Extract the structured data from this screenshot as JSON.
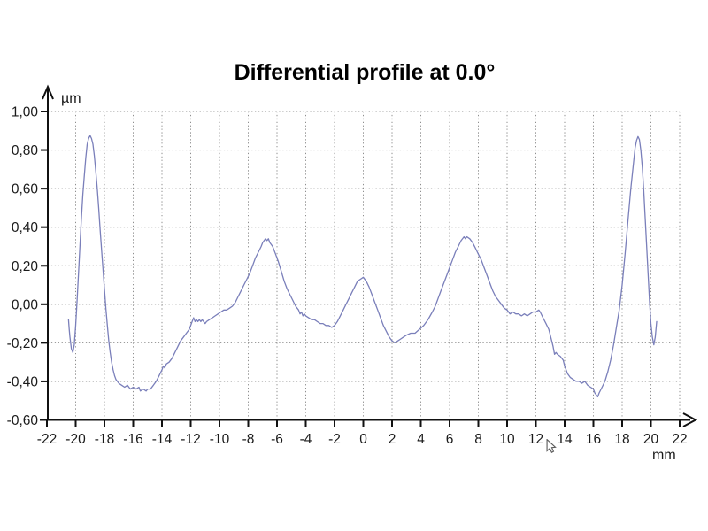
{
  "window": {
    "background": "#ffffff"
  },
  "chart_data": {
    "type": "line",
    "title": "Differential profile at 0.0°",
    "grid": true,
    "legend": "none",
    "x_axis": {
      "unit_label": "mm",
      "min": -22,
      "max": 22,
      "tick_step": 2,
      "tick_labels": [
        "-22",
        "-20",
        "-18",
        "-16",
        "-14",
        "-12",
        "-10",
        "-8",
        "-6",
        "-4",
        "-2",
        "0",
        "2",
        "4",
        "6",
        "8",
        "10",
        "12",
        "14",
        "16",
        "18",
        "20",
        "22"
      ]
    },
    "y_axis": {
      "unit_label": "µm",
      "min": -0.6,
      "max": 1.0,
      "tick_step": 0.2,
      "tick_labels": [
        "1,00",
        "0,80",
        "0,60",
        "0,40",
        "0,20",
        "0,00",
        "-0,20",
        "-0,40",
        "-0,60"
      ]
    },
    "colors": {
      "line": "#7a7fba",
      "grid": "#8f8f8f",
      "axis": "#111111",
      "text": "#1a1a1a"
    },
    "series": [
      {
        "name": "differential-profile",
        "points": [
          [
            -20.5,
            -0.08
          ],
          [
            -20.45,
            -0.13
          ],
          [
            -20.4,
            -0.17
          ],
          [
            -20.3,
            -0.23
          ],
          [
            -20.2,
            -0.25
          ],
          [
            -20.1,
            -0.21
          ],
          [
            -20.0,
            -0.11
          ],
          [
            -19.9,
            0.02
          ],
          [
            -19.8,
            0.16
          ],
          [
            -19.7,
            0.31
          ],
          [
            -19.6,
            0.45
          ],
          [
            -19.5,
            0.57
          ],
          [
            -19.4,
            0.67
          ],
          [
            -19.3,
            0.76
          ],
          [
            -19.2,
            0.83
          ],
          [
            -19.1,
            0.86
          ],
          [
            -19.0,
            0.875
          ],
          [
            -18.9,
            0.86
          ],
          [
            -18.8,
            0.83
          ],
          [
            -18.7,
            0.77
          ],
          [
            -18.6,
            0.69
          ],
          [
            -18.5,
            0.6
          ],
          [
            -18.4,
            0.5
          ],
          [
            -18.3,
            0.39
          ],
          [
            -18.2,
            0.28
          ],
          [
            -18.1,
            0.18
          ],
          [
            -18.0,
            0.08
          ],
          [
            -17.9,
            -0.02
          ],
          [
            -17.8,
            -0.11
          ],
          [
            -17.7,
            -0.19
          ],
          [
            -17.6,
            -0.25
          ],
          [
            -17.5,
            -0.3
          ],
          [
            -17.4,
            -0.34
          ],
          [
            -17.3,
            -0.37
          ],
          [
            -17.2,
            -0.39
          ],
          [
            -17.1,
            -0.4
          ],
          [
            -17.0,
            -0.41
          ],
          [
            -16.8,
            -0.42
          ],
          [
            -16.6,
            -0.43
          ],
          [
            -16.4,
            -0.42
          ],
          [
            -16.2,
            -0.44
          ],
          [
            -16.0,
            -0.43
          ],
          [
            -15.8,
            -0.44
          ],
          [
            -15.6,
            -0.43
          ],
          [
            -15.5,
            -0.45
          ],
          [
            -15.3,
            -0.44
          ],
          [
            -15.1,
            -0.45
          ],
          [
            -15.0,
            -0.44
          ],
          [
            -14.8,
            -0.44
          ],
          [
            -14.6,
            -0.42
          ],
          [
            -14.4,
            -0.4
          ],
          [
            -14.2,
            -0.37
          ],
          [
            -14.0,
            -0.34
          ],
          [
            -13.9,
            -0.32
          ],
          [
            -13.8,
            -0.33
          ],
          [
            -13.7,
            -0.31
          ],
          [
            -13.5,
            -0.3
          ],
          [
            -13.3,
            -0.28
          ],
          [
            -13.1,
            -0.25
          ],
          [
            -12.9,
            -0.22
          ],
          [
            -12.7,
            -0.19
          ],
          [
            -12.5,
            -0.17
          ],
          [
            -12.3,
            -0.15
          ],
          [
            -12.1,
            -0.13
          ],
          [
            -11.9,
            -0.09
          ],
          [
            -11.8,
            -0.07
          ],
          [
            -11.7,
            -0.09
          ],
          [
            -11.6,
            -0.08
          ],
          [
            -11.5,
            -0.09
          ],
          [
            -11.4,
            -0.08
          ],
          [
            -11.3,
            -0.09
          ],
          [
            -11.2,
            -0.08
          ],
          [
            -11.1,
            -0.09
          ],
          [
            -11.0,
            -0.1
          ],
          [
            -10.9,
            -0.09
          ],
          [
            -10.7,
            -0.08
          ],
          [
            -10.5,
            -0.07
          ],
          [
            -10.3,
            -0.06
          ],
          [
            -10.1,
            -0.05
          ],
          [
            -9.9,
            -0.04
          ],
          [
            -9.7,
            -0.03
          ],
          [
            -9.5,
            -0.03
          ],
          [
            -9.3,
            -0.02
          ],
          [
            -9.1,
            -0.01
          ],
          [
            -8.9,
            0.01
          ],
          [
            -8.7,
            0.04
          ],
          [
            -8.5,
            0.07
          ],
          [
            -8.3,
            0.1
          ],
          [
            -8.1,
            0.13
          ],
          [
            -7.9,
            0.16
          ],
          [
            -7.7,
            0.2
          ],
          [
            -7.5,
            0.24
          ],
          [
            -7.3,
            0.27
          ],
          [
            -7.1,
            0.3
          ],
          [
            -7.0,
            0.32
          ],
          [
            -6.9,
            0.33
          ],
          [
            -6.8,
            0.34
          ],
          [
            -6.7,
            0.33
          ],
          [
            -6.6,
            0.34
          ],
          [
            -6.5,
            0.32
          ],
          [
            -6.3,
            0.3
          ],
          [
            -6.1,
            0.26
          ],
          [
            -5.9,
            0.22
          ],
          [
            -5.7,
            0.17
          ],
          [
            -5.5,
            0.12
          ],
          [
            -5.3,
            0.08
          ],
          [
            -5.1,
            0.05
          ],
          [
            -4.9,
            0.02
          ],
          [
            -4.7,
            -0.01
          ],
          [
            -4.5,
            -0.03
          ],
          [
            -4.4,
            -0.05
          ],
          [
            -4.3,
            -0.04
          ],
          [
            -4.2,
            -0.06
          ],
          [
            -4.1,
            -0.05
          ],
          [
            -4.0,
            -0.06
          ],
          [
            -3.8,
            -0.07
          ],
          [
            -3.6,
            -0.08
          ],
          [
            -3.4,
            -0.08
          ],
          [
            -3.2,
            -0.09
          ],
          [
            -3.0,
            -0.1
          ],
          [
            -2.8,
            -0.1
          ],
          [
            -2.6,
            -0.11
          ],
          [
            -2.4,
            -0.11
          ],
          [
            -2.2,
            -0.12
          ],
          [
            -2.0,
            -0.11
          ],
          [
            -1.8,
            -0.09
          ],
          [
            -1.6,
            -0.06
          ],
          [
            -1.4,
            -0.03
          ],
          [
            -1.2,
            0.0
          ],
          [
            -1.0,
            0.03
          ],
          [
            -0.8,
            0.06
          ],
          [
            -0.6,
            0.09
          ],
          [
            -0.4,
            0.12
          ],
          [
            -0.2,
            0.13
          ],
          [
            0.0,
            0.14
          ],
          [
            0.2,
            0.12
          ],
          [
            0.4,
            0.09
          ],
          [
            0.6,
            0.05
          ],
          [
            0.8,
            0.01
          ],
          [
            1.0,
            -0.03
          ],
          [
            1.2,
            -0.07
          ],
          [
            1.4,
            -0.11
          ],
          [
            1.6,
            -0.14
          ],
          [
            1.8,
            -0.17
          ],
          [
            2.0,
            -0.19
          ],
          [
            2.2,
            -0.2
          ],
          [
            2.4,
            -0.19
          ],
          [
            2.6,
            -0.18
          ],
          [
            2.8,
            -0.17
          ],
          [
            3.0,
            -0.16
          ],
          [
            3.3,
            -0.15
          ],
          [
            3.6,
            -0.15
          ],
          [
            3.9,
            -0.13
          ],
          [
            4.2,
            -0.11
          ],
          [
            4.5,
            -0.08
          ],
          [
            4.8,
            -0.04
          ],
          [
            5.0,
            -0.01
          ],
          [
            5.2,
            0.03
          ],
          [
            5.4,
            0.07
          ],
          [
            5.6,
            0.11
          ],
          [
            5.8,
            0.15
          ],
          [
            6.0,
            0.19
          ],
          [
            6.2,
            0.23
          ],
          [
            6.4,
            0.27
          ],
          [
            6.6,
            0.3
          ],
          [
            6.8,
            0.33
          ],
          [
            7.0,
            0.35
          ],
          [
            7.1,
            0.34
          ],
          [
            7.2,
            0.35
          ],
          [
            7.4,
            0.34
          ],
          [
            7.6,
            0.32
          ],
          [
            7.8,
            0.29
          ],
          [
            8.0,
            0.26
          ],
          [
            8.2,
            0.23
          ],
          [
            8.4,
            0.19
          ],
          [
            8.6,
            0.15
          ],
          [
            8.8,
            0.11
          ],
          [
            9.0,
            0.07
          ],
          [
            9.2,
            0.04
          ],
          [
            9.4,
            0.02
          ],
          [
            9.6,
            0.0
          ],
          [
            9.8,
            -0.02
          ],
          [
            10.0,
            -0.03
          ],
          [
            10.2,
            -0.05
          ],
          [
            10.4,
            -0.04
          ],
          [
            10.6,
            -0.05
          ],
          [
            10.8,
            -0.05
          ],
          [
            11.0,
            -0.06
          ],
          [
            11.2,
            -0.05
          ],
          [
            11.4,
            -0.06
          ],
          [
            11.6,
            -0.05
          ],
          [
            11.8,
            -0.04
          ],
          [
            12.0,
            -0.04
          ],
          [
            12.2,
            -0.03
          ],
          [
            12.3,
            -0.04
          ],
          [
            12.5,
            -0.07
          ],
          [
            12.7,
            -0.1
          ],
          [
            12.9,
            -0.13
          ],
          [
            13.0,
            -0.16
          ],
          [
            13.1,
            -0.19
          ],
          [
            13.2,
            -0.22
          ],
          [
            13.3,
            -0.26
          ],
          [
            13.4,
            -0.25
          ],
          [
            13.5,
            -0.26
          ],
          [
            13.7,
            -0.27
          ],
          [
            13.9,
            -0.29
          ],
          [
            14.0,
            -0.32
          ],
          [
            14.2,
            -0.36
          ],
          [
            14.4,
            -0.38
          ],
          [
            14.6,
            -0.39
          ],
          [
            14.8,
            -0.4
          ],
          [
            15.0,
            -0.4
          ],
          [
            15.2,
            -0.41
          ],
          [
            15.4,
            -0.4
          ],
          [
            15.6,
            -0.42
          ],
          [
            15.8,
            -0.43
          ],
          [
            16.0,
            -0.44
          ],
          [
            16.1,
            -0.46
          ],
          [
            16.2,
            -0.47
          ],
          [
            16.3,
            -0.48
          ],
          [
            16.4,
            -0.46
          ],
          [
            16.6,
            -0.43
          ],
          [
            16.8,
            -0.4
          ],
          [
            17.0,
            -0.35
          ],
          [
            17.2,
            -0.29
          ],
          [
            17.4,
            -0.21
          ],
          [
            17.6,
            -0.12
          ],
          [
            17.8,
            -0.03
          ],
          [
            18.0,
            0.1
          ],
          [
            18.2,
            0.26
          ],
          [
            18.4,
            0.43
          ],
          [
            18.6,
            0.6
          ],
          [
            18.8,
            0.74
          ],
          [
            18.9,
            0.81
          ],
          [
            19.0,
            0.85
          ],
          [
            19.1,
            0.87
          ],
          [
            19.2,
            0.855
          ],
          [
            19.3,
            0.8
          ],
          [
            19.4,
            0.71
          ],
          [
            19.5,
            0.59
          ],
          [
            19.6,
            0.45
          ],
          [
            19.7,
            0.31
          ],
          [
            19.8,
            0.16
          ],
          [
            19.9,
            0.02
          ],
          [
            20.0,
            -0.1
          ],
          [
            20.1,
            -0.17
          ],
          [
            20.2,
            -0.21
          ],
          [
            20.3,
            -0.17
          ],
          [
            20.4,
            -0.09
          ]
        ]
      }
    ]
  },
  "icons": {
    "cursor": "mouse-pointer"
  }
}
